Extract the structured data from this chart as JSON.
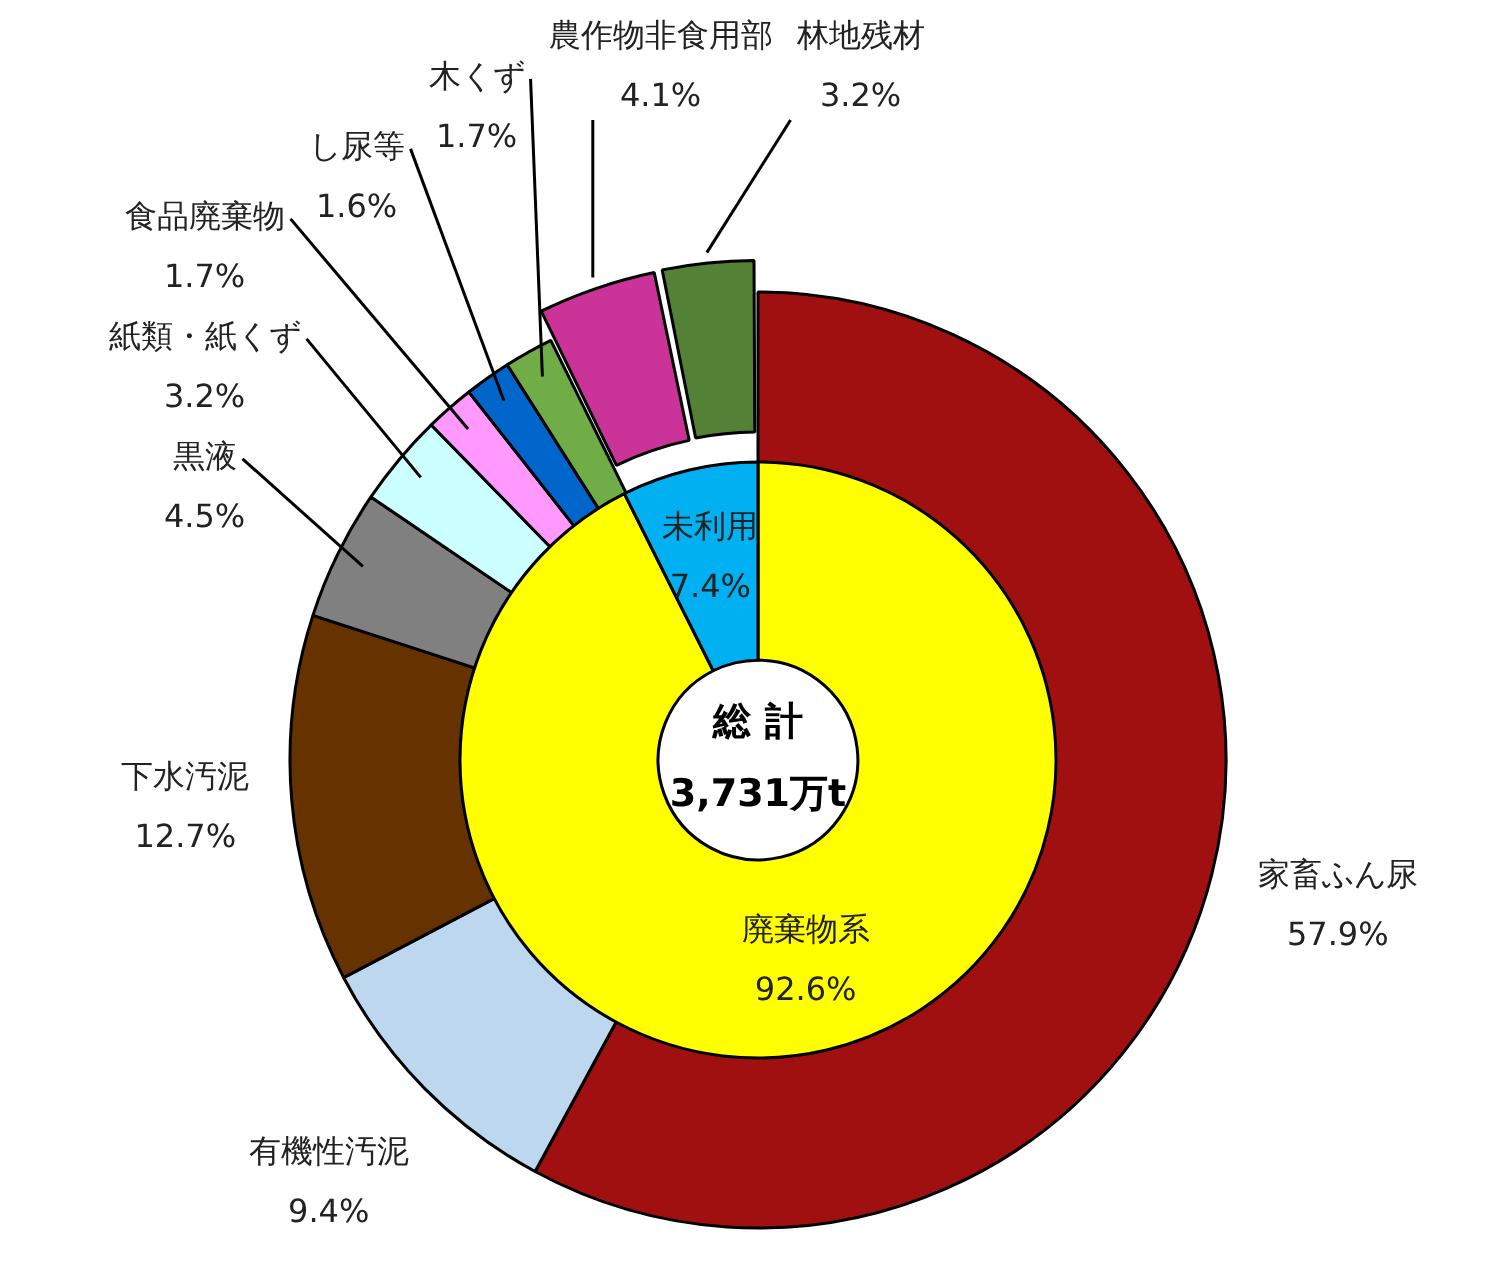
{
  "chart_data": [
    {
      "type": "donut",
      "categories": [
        "家畜ふん尿",
        "有機性汚泥",
        "下水汚泥",
        "黒液",
        "紙類・紙くず",
        "食品廃棄物",
        "し尿等",
        "木くず",
        "農作物非食用部",
        "林地残材"
      ],
      "values": [
        57.9,
        9.4,
        12.7,
        4.5,
        3.2,
        1.7,
        1.6,
        1.7,
        4.1,
        3.2
      ],
      "colors": [
        "#a01010",
        "#bdd7ee",
        "#663300",
        "#808080",
        "#ccffff",
        "#ff99ff",
        "#0066cc",
        "#70ad47",
        "#cc3399",
        "#538135"
      ],
      "value_labels": [
        "57.9%",
        "9.4%",
        "12.7%",
        "4.5%",
        "3.2%",
        "1.7%",
        "1.6%",
        "1.7%",
        "4.1%",
        "3.2%"
      ]
    },
    {
      "type": "donut",
      "categories": [
        "廃棄物系",
        "未利用"
      ],
      "values": [
        92.6,
        7.4
      ],
      "colors": [
        "#ffff00",
        "#00b0f0"
      ],
      "value_labels": [
        "92.6%",
        "7.4%"
      ],
      "annotations": [
        "総 計",
        "3,731万t"
      ]
    }
  ]
}
